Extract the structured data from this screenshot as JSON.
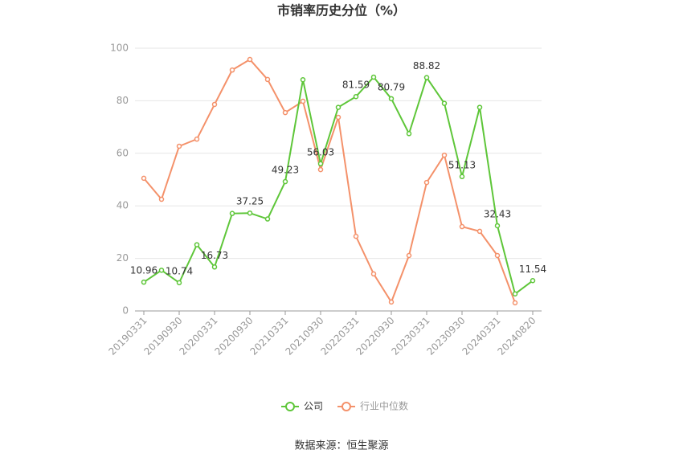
{
  "chart_data": {
    "type": "line",
    "title": "市销率历史分位（%）",
    "categories": [
      "20190331",
      null,
      "20190930",
      null,
      "20200331",
      null,
      "20200930",
      null,
      "20210331",
      null,
      "20210930",
      null,
      "20220331",
      null,
      "20220930",
      null,
      "20230331",
      null,
      "20230930",
      null,
      "20240331",
      null,
      "20240820"
    ],
    "series": [
      {
        "name": "公司",
        "color": "#5ec639",
        "values": [
          10.96,
          15.5,
          10.74,
          25.2,
          16.73,
          37.1,
          37.25,
          35.0,
          49.23,
          88.0,
          56.03,
          77.5,
          81.59,
          89.0,
          80.79,
          67.5,
          88.82,
          79.0,
          51.13,
          77.5,
          32.43,
          6.5,
          11.54
        ],
        "value_labels": [
          "10.96",
          null,
          "10.74",
          null,
          "16.73",
          null,
          "37.25",
          null,
          "49.23",
          null,
          "56.03",
          null,
          "81.59",
          null,
          "80.79",
          null,
          "88.82",
          null,
          "51.13",
          null,
          "32.43",
          null,
          "11.54"
        ]
      },
      {
        "name": "行业中位数",
        "color": "#f4916a",
        "values": [
          50.5,
          42.5,
          62.7,
          65.4,
          78.6,
          91.7,
          95.7,
          88.1,
          75.5,
          79.8,
          53.8,
          73.7,
          28.4,
          14.1,
          3.4,
          21.1,
          48.9,
          59.3,
          32.1,
          30.3,
          21.1,
          3.1,
          null
        ]
      }
    ],
    "ylim": [
      0,
      100
    ],
    "yticks": [
      0,
      20,
      40,
      60,
      80,
      100
    ],
    "grid": true,
    "source": "数据来源：恒生聚源"
  }
}
